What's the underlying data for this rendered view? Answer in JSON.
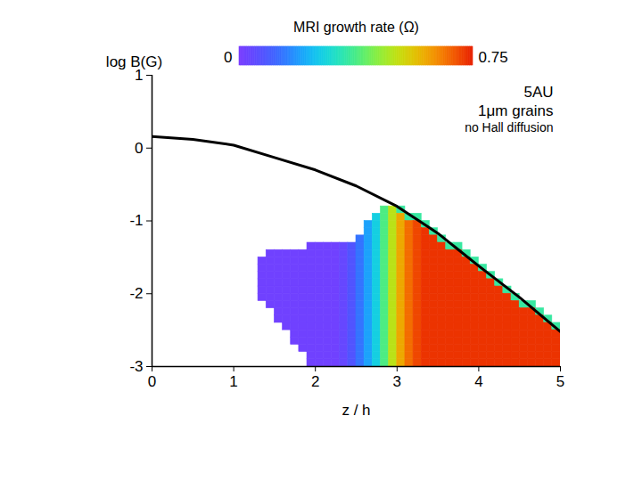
{
  "chart_data": {
    "type": "heatmap",
    "x_label": "z / h",
    "y_label": "log B(G)",
    "annotations": [
      "5AU",
      "1μm grains",
      "no Hall diffusion"
    ],
    "xlim": [
      0,
      5
    ],
    "xticks": [
      0,
      1,
      2,
      3,
      4,
      5
    ],
    "ylim": [
      -3,
      1
    ],
    "yticks": [
      -3,
      -2,
      -1,
      0,
      1
    ],
    "grid": false,
    "colorbar": {
      "label": "MRI growth rate (Ω)",
      "range": [
        0,
        0.75
      ],
      "ticks": [
        0,
        0.75
      ]
    },
    "heatmap": {
      "x": [
        1.35,
        1.45,
        1.55,
        1.65,
        1.75,
        1.85,
        1.95,
        2.05,
        2.15,
        2.25,
        2.35,
        2.45,
        2.55,
        2.65,
        2.75,
        2.85,
        2.95,
        3.05,
        3.15,
        3.25,
        3.35,
        3.45,
        3.55,
        3.65,
        3.75,
        3.85,
        3.95,
        4.05,
        4.15,
        4.25,
        4.35,
        4.45,
        4.55,
        4.65,
        4.75,
        4.85,
        4.95
      ],
      "y": [
        -0.85,
        -0.95,
        -1.05,
        -1.15,
        -1.25,
        -1.35,
        -1.45,
        -1.55,
        -1.65,
        -1.75,
        -1.85,
        -1.95,
        -2.05,
        -2.15,
        -2.25,
        -2.35,
        -2.45,
        -2.55,
        -2.65,
        -2.75,
        -2.85,
        -2.95
      ],
      "values": [
        [
          null,
          null,
          null,
          null,
          null,
          null,
          null,
          null,
          null,
          null,
          null,
          null,
          null,
          null,
          null,
          0.38,
          0.5,
          0.35,
          null,
          null,
          null,
          null,
          null,
          null,
          null,
          null,
          null,
          null,
          null,
          null,
          null,
          null,
          null,
          null,
          null,
          null,
          null
        ],
        [
          null,
          null,
          null,
          null,
          null,
          null,
          null,
          null,
          null,
          null,
          null,
          null,
          null,
          null,
          0.27,
          0.38,
          0.5,
          0.6,
          0.35,
          0.35,
          null,
          null,
          null,
          null,
          null,
          null,
          null,
          null,
          null,
          null,
          null,
          null,
          null,
          null,
          null,
          null,
          null
        ],
        [
          null,
          null,
          null,
          null,
          null,
          null,
          null,
          null,
          null,
          null,
          null,
          null,
          null,
          0.2,
          0.27,
          0.38,
          0.5,
          0.6,
          0.67,
          0.71,
          0.35,
          null,
          null,
          null,
          null,
          null,
          null,
          null,
          null,
          null,
          null,
          null,
          null,
          null,
          null,
          null,
          null
        ],
        [
          null,
          null,
          null,
          null,
          null,
          null,
          null,
          null,
          null,
          null,
          null,
          null,
          null,
          0.2,
          0.27,
          0.38,
          0.5,
          0.6,
          0.67,
          0.71,
          0.73,
          0.35,
          null,
          null,
          null,
          null,
          null,
          null,
          null,
          null,
          null,
          null,
          null,
          null,
          null,
          null,
          null
        ],
        [
          null,
          null,
          null,
          null,
          null,
          null,
          null,
          null,
          null,
          null,
          null,
          null,
          0.14,
          0.2,
          0.27,
          0.38,
          0.5,
          0.6,
          0.67,
          0.71,
          0.73,
          0.73,
          0.35,
          null,
          null,
          null,
          null,
          null,
          null,
          null,
          null,
          null,
          null,
          null,
          null,
          null,
          null
        ],
        [
          null,
          null,
          null,
          null,
          null,
          null,
          0.02,
          0.02,
          0.02,
          0.02,
          0.04,
          0.08,
          0.14,
          0.2,
          0.27,
          0.38,
          0.5,
          0.6,
          0.67,
          0.71,
          0.73,
          0.73,
          0.73,
          0.35,
          0.35,
          null,
          null,
          null,
          null,
          null,
          null,
          null,
          null,
          null,
          null,
          null,
          null
        ],
        [
          null,
          0.02,
          0.02,
          0.02,
          0.02,
          0.02,
          0.02,
          0.02,
          0.02,
          0.02,
          0.04,
          0.08,
          0.14,
          0.2,
          0.27,
          0.38,
          0.5,
          0.6,
          0.67,
          0.71,
          0.73,
          0.73,
          0.73,
          0.73,
          0.73,
          0.35,
          null,
          null,
          null,
          null,
          null,
          null,
          null,
          null,
          null,
          null,
          null
        ],
        [
          0.02,
          0.02,
          0.02,
          0.02,
          0.02,
          0.02,
          0.02,
          0.02,
          0.02,
          0.02,
          0.04,
          0.08,
          0.14,
          0.2,
          0.27,
          0.38,
          0.5,
          0.6,
          0.67,
          0.71,
          0.73,
          0.73,
          0.73,
          0.73,
          0.73,
          0.73,
          0.35,
          null,
          null,
          null,
          null,
          null,
          null,
          null,
          null,
          null,
          null
        ],
        [
          0.02,
          0.02,
          0.02,
          0.02,
          0.02,
          0.02,
          0.02,
          0.02,
          0.02,
          0.02,
          0.04,
          0.08,
          0.14,
          0.2,
          0.27,
          0.38,
          0.5,
          0.6,
          0.67,
          0.71,
          0.73,
          0.73,
          0.73,
          0.73,
          0.73,
          0.73,
          0.73,
          0.35,
          null,
          null,
          null,
          null,
          null,
          null,
          null,
          null,
          null
        ],
        [
          0.02,
          0.02,
          0.02,
          0.02,
          0.02,
          0.02,
          0.02,
          0.02,
          0.02,
          0.02,
          0.04,
          0.08,
          0.14,
          0.2,
          0.27,
          0.38,
          0.5,
          0.6,
          0.67,
          0.71,
          0.73,
          0.73,
          0.73,
          0.73,
          0.73,
          0.73,
          0.73,
          0.73,
          0.35,
          null,
          null,
          null,
          null,
          null,
          null,
          null,
          null
        ],
        [
          0.02,
          0.02,
          0.02,
          0.02,
          0.02,
          0.02,
          0.02,
          0.02,
          0.02,
          0.02,
          0.04,
          0.08,
          0.14,
          0.2,
          0.27,
          0.38,
          0.5,
          0.6,
          0.67,
          0.71,
          0.73,
          0.73,
          0.73,
          0.73,
          0.73,
          0.73,
          0.73,
          0.73,
          0.73,
          0.35,
          null,
          null,
          null,
          null,
          null,
          null,
          null
        ],
        [
          0.02,
          0.02,
          0.02,
          0.02,
          0.02,
          0.02,
          0.02,
          0.02,
          0.02,
          0.02,
          0.04,
          0.08,
          0.14,
          0.2,
          0.27,
          0.38,
          0.5,
          0.6,
          0.67,
          0.71,
          0.73,
          0.73,
          0.73,
          0.73,
          0.73,
          0.73,
          0.73,
          0.73,
          0.73,
          0.73,
          0.35,
          null,
          null,
          null,
          null,
          null,
          null
        ],
        [
          0.02,
          0.02,
          0.02,
          0.02,
          0.02,
          0.02,
          0.02,
          0.02,
          0.02,
          0.02,
          0.04,
          0.08,
          0.14,
          0.2,
          0.27,
          0.38,
          0.5,
          0.6,
          0.67,
          0.71,
          0.73,
          0.73,
          0.73,
          0.73,
          0.73,
          0.73,
          0.73,
          0.73,
          0.73,
          0.73,
          0.73,
          0.35,
          null,
          null,
          null,
          null,
          null
        ],
        [
          null,
          0.02,
          0.02,
          0.02,
          0.02,
          0.02,
          0.02,
          0.02,
          0.02,
          0.02,
          0.04,
          0.08,
          0.14,
          0.2,
          0.27,
          0.38,
          0.5,
          0.6,
          0.67,
          0.71,
          0.73,
          0.73,
          0.73,
          0.73,
          0.73,
          0.73,
          0.73,
          0.73,
          0.73,
          0.73,
          0.73,
          0.73,
          0.35,
          0.35,
          null,
          null,
          null
        ],
        [
          null,
          null,
          0.02,
          0.02,
          0.02,
          0.02,
          0.02,
          0.02,
          0.02,
          0.02,
          0.04,
          0.08,
          0.14,
          0.2,
          0.27,
          0.38,
          0.5,
          0.6,
          0.67,
          0.71,
          0.73,
          0.73,
          0.73,
          0.73,
          0.73,
          0.73,
          0.73,
          0.73,
          0.73,
          0.73,
          0.73,
          0.73,
          0.73,
          0.73,
          0.35,
          null,
          null
        ],
        [
          null,
          null,
          0.02,
          0.02,
          0.02,
          0.02,
          0.02,
          0.02,
          0.02,
          0.02,
          0.04,
          0.08,
          0.14,
          0.2,
          0.27,
          0.38,
          0.5,
          0.6,
          0.67,
          0.71,
          0.73,
          0.73,
          0.73,
          0.73,
          0.73,
          0.73,
          0.73,
          0.73,
          0.73,
          0.73,
          0.73,
          0.73,
          0.73,
          0.73,
          0.73,
          0.35,
          null
        ],
        [
          null,
          null,
          null,
          0.02,
          0.02,
          0.02,
          0.02,
          0.02,
          0.02,
          0.02,
          0.04,
          0.08,
          0.14,
          0.2,
          0.27,
          0.38,
          0.5,
          0.6,
          0.67,
          0.71,
          0.73,
          0.73,
          0.73,
          0.73,
          0.73,
          0.73,
          0.73,
          0.73,
          0.73,
          0.73,
          0.73,
          0.73,
          0.73,
          0.73,
          0.73,
          0.73,
          0.35
        ],
        [
          null,
          null,
          null,
          null,
          0.02,
          0.02,
          0.02,
          0.02,
          0.02,
          0.02,
          0.04,
          0.08,
          0.14,
          0.2,
          0.27,
          0.38,
          0.5,
          0.6,
          0.67,
          0.71,
          0.73,
          0.73,
          0.73,
          0.73,
          0.73,
          0.73,
          0.73,
          0.73,
          0.73,
          0.73,
          0.73,
          0.73,
          0.73,
          0.73,
          0.73,
          0.73,
          0.73
        ],
        [
          null,
          null,
          null,
          null,
          0.02,
          0.02,
          0.02,
          0.02,
          0.02,
          0.02,
          0.04,
          0.08,
          0.14,
          0.2,
          0.27,
          0.38,
          0.5,
          0.6,
          0.67,
          0.71,
          0.73,
          0.73,
          0.73,
          0.73,
          0.73,
          0.73,
          0.73,
          0.73,
          0.73,
          0.73,
          0.73,
          0.73,
          0.73,
          0.73,
          0.73,
          0.73,
          0.73
        ],
        [
          null,
          null,
          null,
          null,
          null,
          0.02,
          0.02,
          0.02,
          0.02,
          0.02,
          0.04,
          0.08,
          0.14,
          0.2,
          0.27,
          0.38,
          0.5,
          0.6,
          0.67,
          0.71,
          0.73,
          0.73,
          0.73,
          0.73,
          0.73,
          0.73,
          0.73,
          0.73,
          0.73,
          0.73,
          0.73,
          0.73,
          0.73,
          0.73,
          0.73,
          0.73,
          0.73
        ],
        [
          null,
          null,
          null,
          null,
          null,
          null,
          0.02,
          0.02,
          0.02,
          0.02,
          0.04,
          0.08,
          0.14,
          0.2,
          0.27,
          0.38,
          0.5,
          0.6,
          0.67,
          0.71,
          0.73,
          0.73,
          0.73,
          0.73,
          0.73,
          0.73,
          0.73,
          0.73,
          0.73,
          0.73,
          0.73,
          0.73,
          0.73,
          0.73,
          0.73,
          0.73,
          0.73
        ],
        [
          null,
          null,
          null,
          null,
          null,
          null,
          0.02,
          0.02,
          0.02,
          0.02,
          0.04,
          0.08,
          0.14,
          0.2,
          0.27,
          0.38,
          0.5,
          0.6,
          0.67,
          0.71,
          0.73,
          0.73,
          0.73,
          0.73,
          0.73,
          0.73,
          0.73,
          0.73,
          0.73,
          0.73,
          0.73,
          0.73,
          0.73,
          0.73,
          0.73,
          0.73,
          0.73
        ]
      ]
    },
    "line": {
      "color": "#000000",
      "x": [
        0,
        0.5,
        1,
        1.5,
        2,
        2.5,
        3,
        3.5,
        4,
        4.5,
        5
      ],
      "y": [
        0.16,
        0.12,
        0.04,
        -0.13,
        -0.3,
        -0.52,
        -0.8,
        -1.17,
        -1.62,
        -2.05,
        -2.52
      ]
    }
  }
}
